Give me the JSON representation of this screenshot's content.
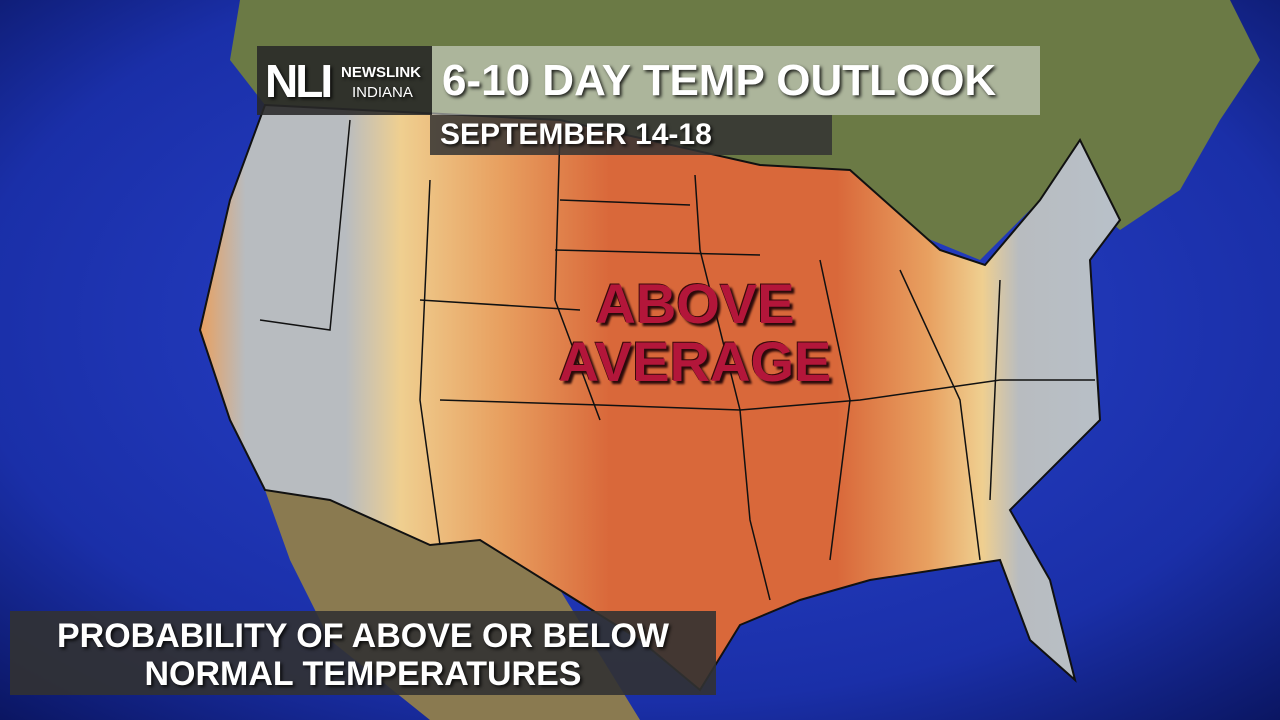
{
  "logo": {
    "initials": "NLI",
    "line1": "NEWSLINK",
    "line2": "INDIANA"
  },
  "header": {
    "title": "6-10 DAY TEMP OUTLOOK",
    "date_range": "SEPTEMBER 14-18"
  },
  "map": {
    "label": "ABOVE AVERAGE",
    "label_lines": [
      "ABOVE",
      "AVERAGE"
    ],
    "colors": {
      "ocean": "#1a2fa8",
      "above_strong": "#d9683a",
      "above_mid": "#e8a060",
      "above_weak": "#efcf90",
      "below_normal": "#b8bcc0",
      "label": "#b3163a"
    }
  },
  "footer": {
    "line1": "PROBABILITY OF ABOVE OR BELOW",
    "line2": "NORMAL TEMPERATURES"
  }
}
